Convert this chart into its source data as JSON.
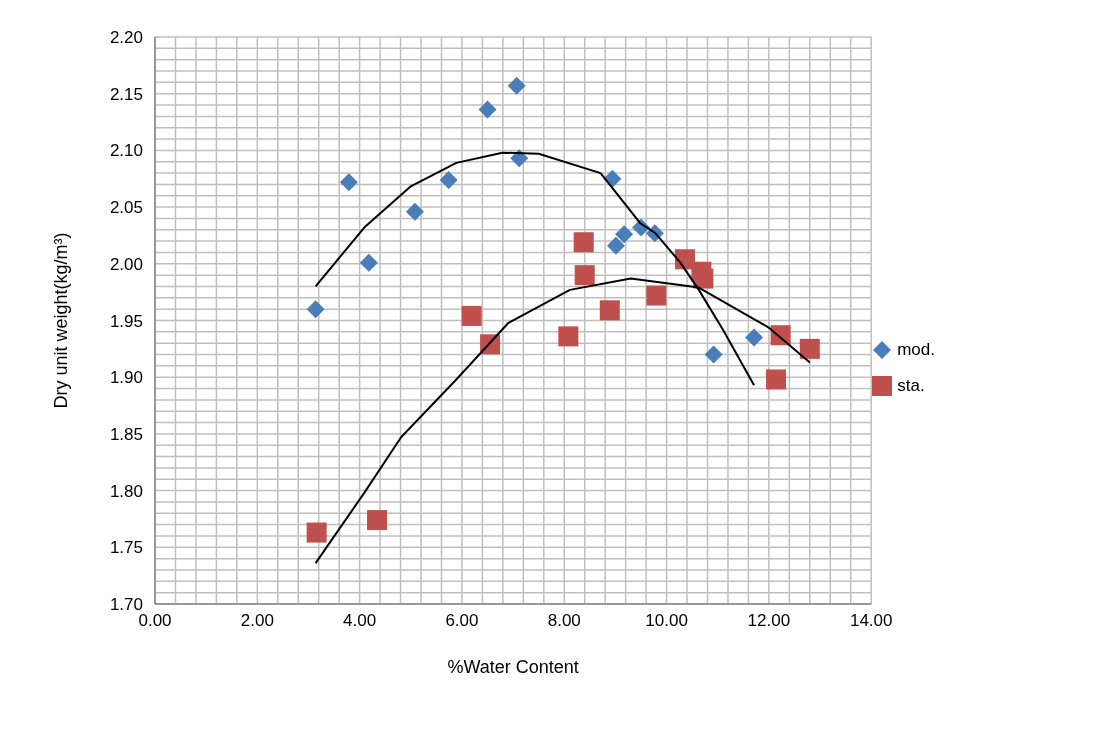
{
  "chart_data": {
    "type": "scatter",
    "xlabel": "%Water Content",
    "ylabel": "Dry unit weight(kg/m³)",
    "grid": true,
    "legend": "right",
    "xlim": [
      0,
      14
    ],
    "xticks": [
      {
        "value": 0,
        "label": "0.00"
      },
      {
        "value": 0.4,
        "label": null
      },
      {
        "value": 0.8,
        "label": null
      },
      {
        "value": 1.2,
        "label": null
      },
      {
        "value": 1.6,
        "label": null
      },
      {
        "value": 2,
        "label": "2.00"
      },
      {
        "value": 2.4,
        "label": null
      },
      {
        "value": 2.8,
        "label": null
      },
      {
        "value": 3.2,
        "label": null
      },
      {
        "value": 3.6,
        "label": null
      },
      {
        "value": 4,
        "label": "4.00"
      },
      {
        "value": 4.4,
        "label": null
      },
      {
        "value": 4.8,
        "label": null
      },
      {
        "value": 5.2,
        "label": null
      },
      {
        "value": 5.6,
        "label": null
      },
      {
        "value": 6,
        "label": "6.00"
      },
      {
        "value": 6.4,
        "label": null
      },
      {
        "value": 6.8,
        "label": null
      },
      {
        "value": 7.2,
        "label": null
      },
      {
        "value": 7.6,
        "label": null
      },
      {
        "value": 8,
        "label": "8.00"
      },
      {
        "value": 8.4,
        "label": null
      },
      {
        "value": 8.8,
        "label": null
      },
      {
        "value": 9.2,
        "label": null
      },
      {
        "value": 9.6,
        "label": null
      },
      {
        "value": 10,
        "label": "10.00"
      },
      {
        "value": 10.4,
        "label": null
      },
      {
        "value": 10.8,
        "label": null
      },
      {
        "value": 11.2,
        "label": null
      },
      {
        "value": 11.6,
        "label": null
      },
      {
        "value": 12,
        "label": "12.00"
      },
      {
        "value": 12.4,
        "label": null
      },
      {
        "value": 12.8,
        "label": null
      },
      {
        "value": 13.2,
        "label": null
      },
      {
        "value": 13.6,
        "label": null
      },
      {
        "value": 14,
        "label": "14.00"
      }
    ],
    "ylim": [
      1.7,
      2.2
    ],
    "yticks": [
      {
        "value": 1.7,
        "label": "1.70"
      },
      {
        "value": 1.71,
        "label": null
      },
      {
        "value": 1.72,
        "label": null
      },
      {
        "value": 1.73,
        "label": null
      },
      {
        "value": 1.74,
        "label": null
      },
      {
        "value": 1.75,
        "label": "1.75"
      },
      {
        "value": 1.76,
        "label": null
      },
      {
        "value": 1.77,
        "label": null
      },
      {
        "value": 1.78,
        "label": null
      },
      {
        "value": 1.79,
        "label": null
      },
      {
        "value": 1.8,
        "label": "1.80"
      },
      {
        "value": 1.81,
        "label": null
      },
      {
        "value": 1.82,
        "label": null
      },
      {
        "value": 1.83,
        "label": null
      },
      {
        "value": 1.84,
        "label": null
      },
      {
        "value": 1.85,
        "label": "1.85"
      },
      {
        "value": 1.86,
        "label": null
      },
      {
        "value": 1.87,
        "label": null
      },
      {
        "value": 1.88,
        "label": null
      },
      {
        "value": 1.89,
        "label": null
      },
      {
        "value": 1.9,
        "label": "1.90"
      },
      {
        "value": 1.91,
        "label": null
      },
      {
        "value": 1.92,
        "label": null
      },
      {
        "value": 1.93,
        "label": null
      },
      {
        "value": 1.94,
        "label": null
      },
      {
        "value": 1.95,
        "label": "1.95"
      },
      {
        "value": 1.96,
        "label": null
      },
      {
        "value": 1.97,
        "label": null
      },
      {
        "value": 1.98,
        "label": null
      },
      {
        "value": 1.99,
        "label": null
      },
      {
        "value": 2.0,
        "label": "2.00"
      },
      {
        "value": 2.01,
        "label": null
      },
      {
        "value": 2.02,
        "label": null
      },
      {
        "value": 2.03,
        "label": null
      },
      {
        "value": 2.04,
        "label": null
      },
      {
        "value": 2.05,
        "label": "2.05"
      },
      {
        "value": 2.06,
        "label": null
      },
      {
        "value": 2.07,
        "label": null
      },
      {
        "value": 2.08,
        "label": null
      },
      {
        "value": 2.09,
        "label": null
      },
      {
        "value": 2.1,
        "label": "2.10"
      },
      {
        "value": 2.11,
        "label": null
      },
      {
        "value": 2.12,
        "label": null
      },
      {
        "value": 2.13,
        "label": null
      },
      {
        "value": 2.14,
        "label": null
      },
      {
        "value": 2.15,
        "label": "2.15"
      },
      {
        "value": 2.16,
        "label": null
      },
      {
        "value": 2.17,
        "label": null
      },
      {
        "value": 2.18,
        "label": null
      },
      {
        "value": 2.19,
        "label": null
      },
      {
        "value": 2.2,
        "label": "2.20"
      }
    ],
    "series": [
      {
        "name": "mod.",
        "marker": "diamond",
        "color": "#4a7ebb",
        "x": [
          3.14,
          3.79,
          4.18,
          5.08,
          5.74,
          6.5,
          7.07,
          7.12,
          8.94,
          9.01,
          9.17,
          9.5,
          9.77,
          10.92,
          11.71
        ],
        "values": [
          1.96,
          2.072,
          2.001,
          2.046,
          2.074,
          2.136,
          2.157,
          2.093,
          2.075,
          2.016,
          2.026,
          2.032,
          2.027,
          1.92,
          1.935
        ]
      },
      {
        "name": "sta.",
        "marker": "square",
        "color": "#c0504d",
        "x": [
          3.16,
          4.34,
          6.19,
          6.55,
          8.08,
          8.38,
          8.4,
          8.89,
          9.8,
          10.36,
          10.68,
          10.72,
          12.14,
          12.23,
          12.8
        ],
        "values": [
          1.763,
          1.774,
          1.954,
          1.929,
          1.936,
          2.019,
          1.99,
          1.959,
          1.972,
          2.004,
          1.993,
          1.987,
          1.898,
          1.937,
          1.925
        ]
      },
      {
        "type": "line",
        "marker": "none",
        "color": "#000000",
        "x": [
          3.14,
          4.09,
          4.99,
          5.89,
          6.79,
          7.5,
          8.71,
          9.48,
          9.78,
          10.27,
          10.63,
          11.1,
          11.71
        ],
        "values": [
          1.98,
          2.032,
          2.068,
          2.089,
          2.098,
          2.097,
          2.08,
          2.036,
          2.027,
          2.001,
          1.977,
          1.942,
          1.893
        ]
      },
      {
        "type": "line",
        "marker": "none",
        "color": "#000000",
        "x": [
          3.14,
          4.09,
          4.81,
          5.89,
          6.91,
          8.11,
          9.3,
          10.63,
          11.99,
          12.8
        ],
        "values": [
          1.736,
          1.798,
          1.847,
          1.898,
          1.948,
          1.977,
          1.987,
          1.979,
          1.944,
          1.913
        ]
      }
    ]
  }
}
